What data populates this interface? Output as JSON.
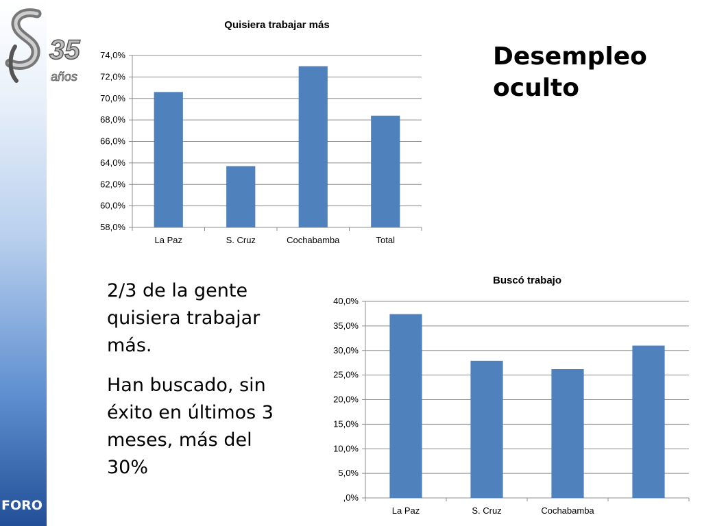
{
  "slide": {
    "title_line1": "Desempleo",
    "title_line2": "oculto",
    "paragraph1": "2/3 de la gente quisiera trabajar más.",
    "paragraph2": "Han buscado, sin éxito en últimos 3 meses, más del 30%",
    "footer_label": "FORO",
    "logo_text": "35 años"
  },
  "colors": {
    "bar": "#4f81bd",
    "grid": "#8c8c8c",
    "sidebar_dark": "#224f97"
  },
  "chart_data": [
    {
      "type": "bar",
      "title": "Quisiera trabajar más",
      "categories": [
        "La Paz",
        "S. Cruz",
        "Cochabamba",
        "Total"
      ],
      "values": [
        70.6,
        63.7,
        73.0,
        68.4
      ],
      "ylim": [
        58,
        74
      ],
      "yticks": [
        58,
        60,
        62,
        64,
        66,
        68,
        70,
        72,
        74
      ],
      "ytick_labels": [
        "58,0%",
        "60,0%",
        "62,0%",
        "64,0%",
        "66,0%",
        "68,0%",
        "70,0%",
        "72,0%",
        "74,0%"
      ],
      "grid": true,
      "legend": "none"
    },
    {
      "type": "bar",
      "title": "Buscó trabajo",
      "categories": [
        "La Paz",
        "S. Cruz",
        "Cochabamba",
        ""
      ],
      "values": [
        37.4,
        27.9,
        26.2,
        31.0
      ],
      "ylim": [
        0,
        40
      ],
      "yticks": [
        0,
        5,
        10,
        15,
        20,
        25,
        30,
        35,
        40
      ],
      "ytick_labels": [
        ",0%",
        "5,0%",
        "10,0%",
        "15,0%",
        "20,0%",
        "25,0%",
        "30,0%",
        "35,0%",
        "40,0%"
      ],
      "grid": true,
      "legend": "none"
    }
  ]
}
